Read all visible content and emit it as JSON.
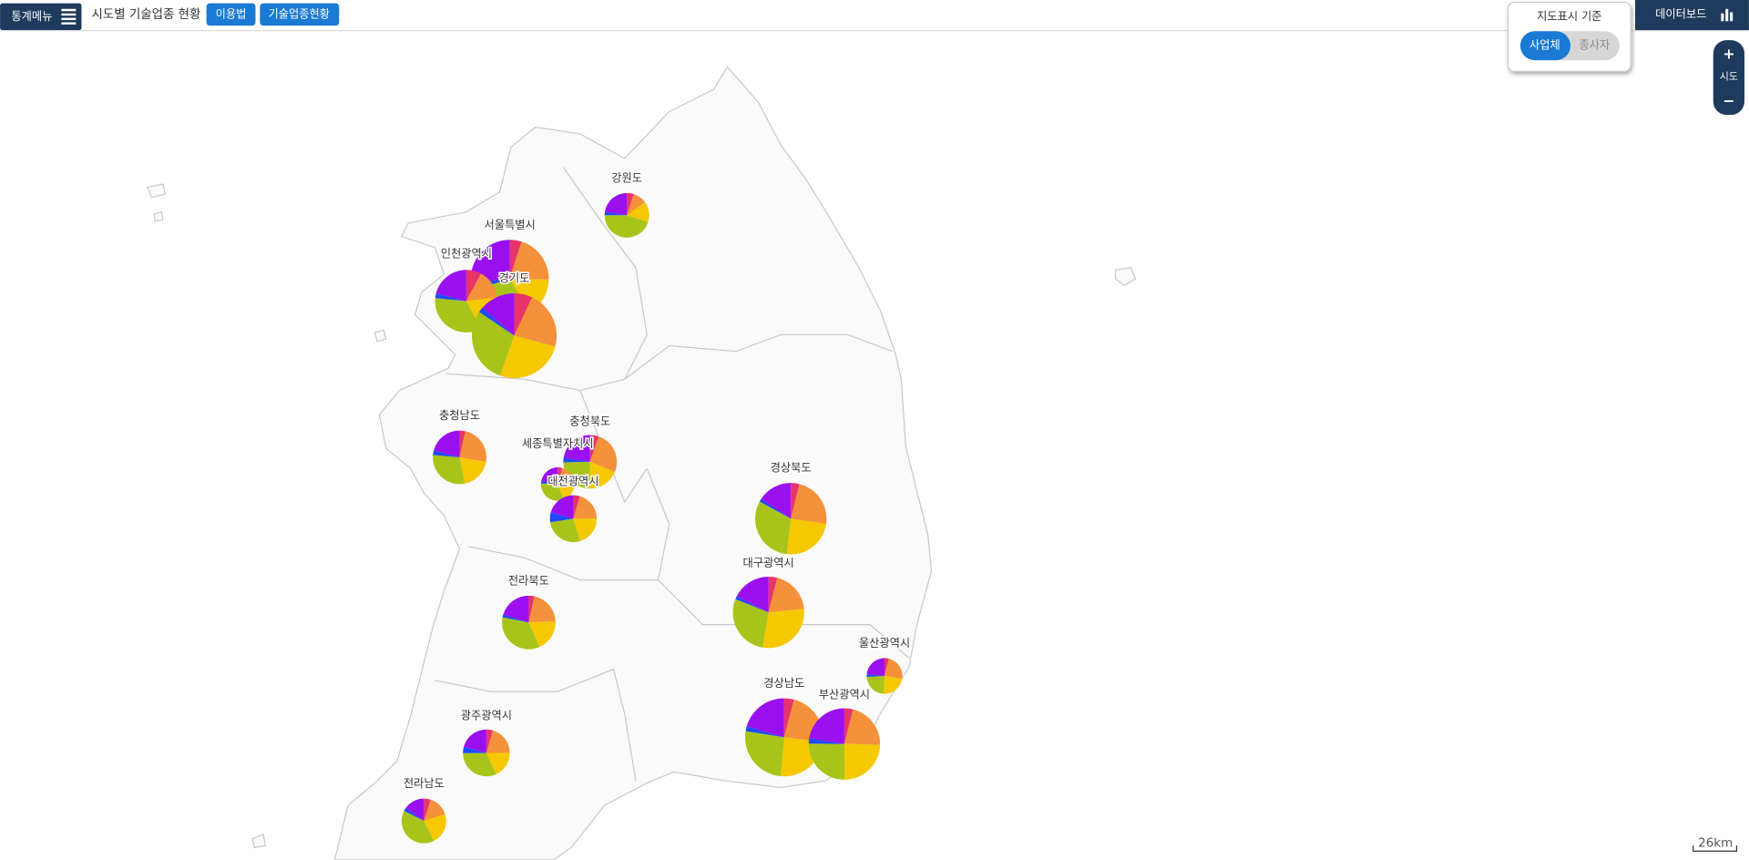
{
  "header": {
    "menu": "통계메뉴",
    "title": "시도별 기술업종 현황",
    "buttons": [
      "이용법",
      "기술업종현황"
    ],
    "dashboard": "데이터보드"
  },
  "map_basis": {
    "title": "지도표시 기준",
    "options": [
      "사업체",
      "종사자"
    ],
    "selected": 0
  },
  "zoom": {
    "in": "+",
    "level": "시도",
    "out": "−"
  },
  "scale": "26km",
  "chart_data": {
    "type": "pie",
    "colors": [
      "#e8336b",
      "#f4913a",
      "#f5c800",
      "#a8c41a",
      "#1e4bff",
      "#9b10f0"
    ],
    "regions": [
      {
        "name": "강원도",
        "values": [
          20,
          40,
          60,
          180,
          10,
          90
        ]
      },
      {
        "name": "서울특별시",
        "values": [
          60,
          250,
          200,
          350,
          40,
          325
        ]
      },
      {
        "name": "인천광역시",
        "values": [
          60,
          120,
          150,
          270,
          20,
          164
        ]
      },
      {
        "name": "경기도",
        "values": [
          100,
          320,
          380,
          420,
          30,
          194
        ]
      },
      {
        "name": "충청남도",
        "values": [
          20,
          140,
          110,
          170,
          16,
          120
        ]
      },
      {
        "name": "충청북도",
        "values": [
          30,
          150,
          110,
          140,
          16,
          130
        ]
      },
      {
        "name": "세종특별자치시",
        "values": [
          10,
          50,
          40,
          70,
          5,
          50
        ]
      },
      {
        "name": "대전광역시",
        "values": [
          20,
          90,
          90,
          120,
          30,
          91
        ]
      },
      {
        "name": "경상북도",
        "values": [
          40,
          240,
          250,
          320,
          14,
          160
        ]
      },
      {
        "name": "대구광역시",
        "values": [
          40,
          200,
          300,
          290,
          14,
          180
        ]
      },
      {
        "name": "전라북도",
        "values": [
          20,
          120,
          110,
          200,
          10,
          116
        ]
      },
      {
        "name": "울산광역시",
        "values": [
          10,
          60,
          60,
          60,
          6,
          60
        ]
      },
      {
        "name": "경상남도",
        "values": [
          50,
          280,
          300,
          320,
          25,
          250
        ]
      },
      {
        "name": "부산광역시",
        "values": [
          40,
          220,
          250,
          260,
          24,
          230
        ]
      },
      {
        "name": "광주광역시",
        "values": [
          20,
          90,
          80,
          140,
          20,
          91
        ]
      },
      {
        "name": "전라남도",
        "values": [
          20,
          60,
          90,
          160,
          10,
          60
        ]
      }
    ]
  }
}
